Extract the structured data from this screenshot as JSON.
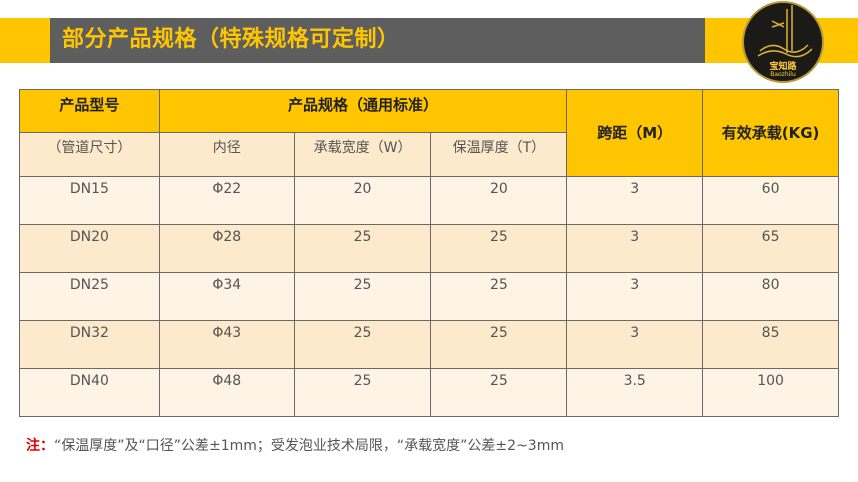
{
  "header": {
    "title": "部分产品规格（特殊规格可定制）",
    "logo_name": "宝知路",
    "logo_sub": "Baozhilu"
  },
  "table": {
    "h_model": "产品型号",
    "h_spec": "产品规格（通用标准）",
    "h_span": "跨距（M）",
    "h_load": "有效承载(KG)",
    "sub": [
      "（管道尺寸）",
      "内径",
      "承载宽度（W）",
      "保温厚度（T）"
    ],
    "rows": [
      [
        "DN15",
        "Φ22",
        "20",
        "20",
        "3",
        "60"
      ],
      [
        "DN20",
        "Φ28",
        "25",
        "25",
        "3",
        "65"
      ],
      [
        "DN25",
        "Φ34",
        "25",
        "25",
        "3",
        "80"
      ],
      [
        "DN32",
        "Φ43",
        "25",
        "25",
        "3",
        "85"
      ],
      [
        "DN40",
        "Φ48",
        "25",
        "25",
        "3.5",
        "100"
      ]
    ]
  },
  "note": {
    "label": "注：",
    "text": "“保温厚度”及“口径”公差±1mm；受发泡业技术局限，“承载宽度”公差±2~3mm"
  },
  "colors": {
    "accent": "#ffc600",
    "title_bg": "#5e5e5e",
    "note_label": "#e00000"
  }
}
